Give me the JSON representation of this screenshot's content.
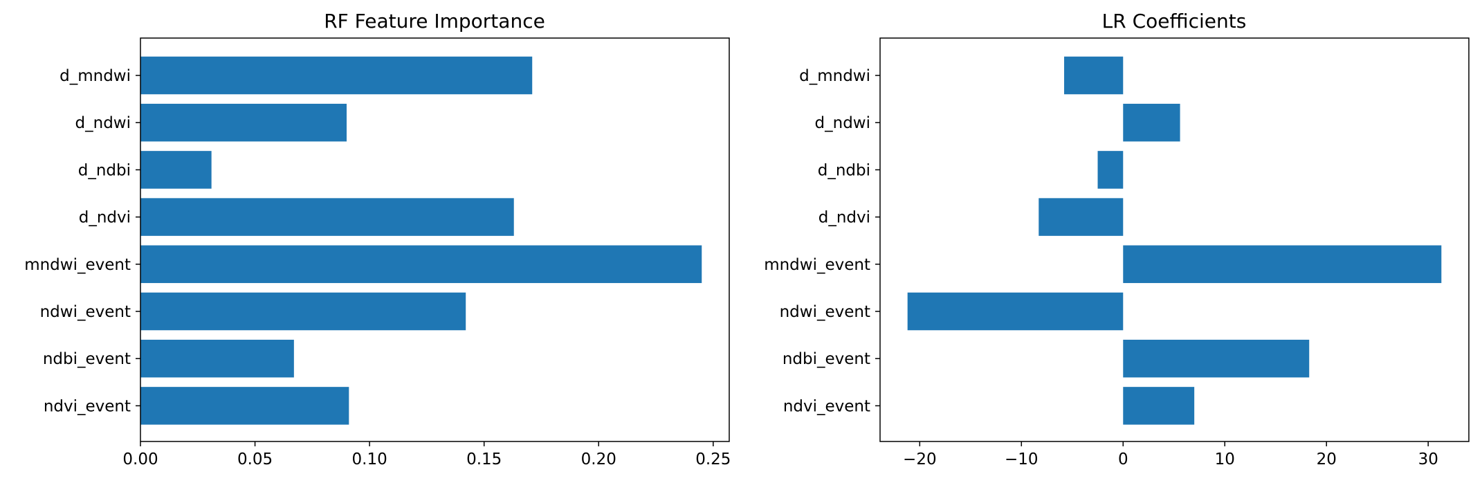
{
  "colors": {
    "bar": "#1f77b4",
    "axis": "#000000",
    "background": "#ffffff"
  },
  "chart_data": [
    {
      "type": "bar",
      "orientation": "horizontal",
      "title": "RF Feature Importance",
      "xlabel": "",
      "ylabel": "",
      "categories": [
        "d_mndwi",
        "d_ndwi",
        "d_ndbi",
        "d_ndvi",
        "mndwi_event",
        "ndwi_event",
        "ndbi_event",
        "ndvi_event"
      ],
      "values": [
        0.171,
        0.09,
        0.031,
        0.163,
        0.245,
        0.142,
        0.067,
        0.091
      ],
      "xlim": [
        0.0,
        0.257
      ],
      "xticks": [
        0.0,
        0.05,
        0.1,
        0.15,
        0.2,
        0.25
      ],
      "xtick_labels": [
        "0.00",
        "0.05",
        "0.10",
        "0.15",
        "0.20",
        "0.25"
      ],
      "grid": false,
      "legend": "none"
    },
    {
      "type": "bar",
      "orientation": "horizontal",
      "title": "LR Coefficients",
      "xlabel": "",
      "ylabel": "",
      "categories": [
        "d_mndwi",
        "d_ndwi",
        "d_ndbi",
        "d_ndvi",
        "mndwi_event",
        "ndwi_event",
        "ndbi_event",
        "ndvi_event"
      ],
      "values": [
        -5.8,
        5.6,
        -2.5,
        -8.3,
        31.3,
        -21.2,
        18.3,
        7.0
      ],
      "xlim": [
        -23.9,
        34.0
      ],
      "xticks": [
        -20,
        -10,
        0,
        10,
        20,
        30
      ],
      "xtick_labels": [
        "−20",
        "−10",
        "0",
        "10",
        "20",
        "30"
      ],
      "grid": false,
      "legend": "none"
    }
  ]
}
